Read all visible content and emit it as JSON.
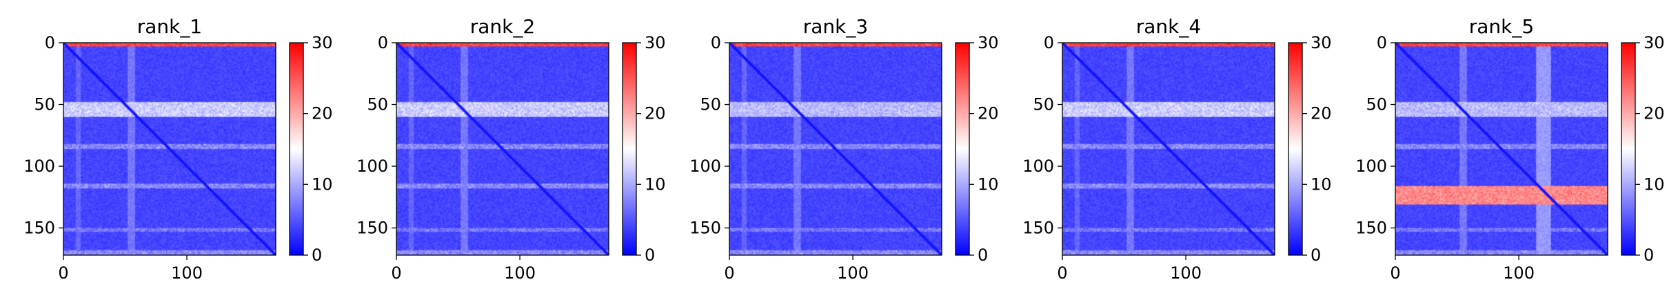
{
  "chart_data": [
    {
      "type": "heatmap",
      "title": "rank_1",
      "xlim": [
        0,
        172
      ],
      "ylim": [
        172,
        0
      ],
      "xticks": [
        0,
        100
      ],
      "xtick_labels": [
        "0",
        "100"
      ],
      "yticks": [
        0,
        50,
        100,
        150
      ],
      "ytick_labels": [
        "0",
        "50",
        "100",
        "150"
      ],
      "colorbar": {
        "range": [
          0,
          30
        ],
        "ticks": [
          0,
          10,
          20,
          30
        ],
        "tick_labels": [
          "0",
          "10",
          "20",
          "30"
        ],
        "colormap": "bwr"
      },
      "base_value": 4,
      "diagonal_value": 1,
      "row_bands": [
        {
          "rows": [
            0,
            3
          ],
          "value": 26
        },
        {
          "rows": [
            48,
            60
          ],
          "value": 12
        },
        {
          "rows": [
            82,
            86
          ],
          "value": 8
        },
        {
          "rows": [
            114,
            118
          ],
          "value": 8
        },
        {
          "rows": [
            150,
            153
          ],
          "value": 7
        },
        {
          "rows": [
            168,
            172
          ],
          "value": 8
        }
      ],
      "col_bands": [
        {
          "cols": [
            52,
            58
          ],
          "value": 7
        },
        {
          "cols": [
            10,
            14
          ],
          "value": 6
        }
      ]
    },
    {
      "type": "heatmap",
      "title": "rank_2",
      "xlim": [
        0,
        172
      ],
      "ylim": [
        172,
        0
      ],
      "xticks": [
        0,
        100
      ],
      "xtick_labels": [
        "0",
        "100"
      ],
      "yticks": [
        0,
        50,
        100,
        150
      ],
      "ytick_labels": [
        "0",
        "50",
        "100",
        "150"
      ],
      "colorbar": {
        "range": [
          0,
          30
        ],
        "ticks": [
          0,
          10,
          20,
          30
        ],
        "tick_labels": [
          "0",
          "10",
          "20",
          "30"
        ],
        "colormap": "bwr"
      },
      "base_value": 4,
      "diagonal_value": 1,
      "row_bands": [
        {
          "rows": [
            0,
            3
          ],
          "value": 26
        },
        {
          "rows": [
            48,
            60
          ],
          "value": 12
        },
        {
          "rows": [
            82,
            86
          ],
          "value": 8
        },
        {
          "rows": [
            114,
            118
          ],
          "value": 8
        },
        {
          "rows": [
            150,
            153
          ],
          "value": 7
        },
        {
          "rows": [
            168,
            172
          ],
          "value": 8
        }
      ],
      "col_bands": [
        {
          "cols": [
            52,
            58
          ],
          "value": 7
        },
        {
          "cols": [
            10,
            14
          ],
          "value": 6
        }
      ]
    },
    {
      "type": "heatmap",
      "title": "rank_3",
      "xlim": [
        0,
        172
      ],
      "ylim": [
        172,
        0
      ],
      "xticks": [
        0,
        100
      ],
      "xtick_labels": [
        "0",
        "100"
      ],
      "yticks": [
        0,
        50,
        100,
        150
      ],
      "ytick_labels": [
        "0",
        "50",
        "100",
        "150"
      ],
      "colorbar": {
        "range": [
          0,
          30
        ],
        "ticks": [
          0,
          10,
          20,
          30
        ],
        "tick_labels": [
          "0",
          "10",
          "20",
          "30"
        ],
        "colormap": "bwr"
      },
      "base_value": 4,
      "diagonal_value": 1,
      "row_bands": [
        {
          "rows": [
            0,
            3
          ],
          "value": 26
        },
        {
          "rows": [
            48,
            60
          ],
          "value": 11
        },
        {
          "rows": [
            82,
            86
          ],
          "value": 8
        },
        {
          "rows": [
            114,
            118
          ],
          "value": 8
        },
        {
          "rows": [
            150,
            153
          ],
          "value": 7
        },
        {
          "rows": [
            168,
            172
          ],
          "value": 8
        }
      ],
      "col_bands": [
        {
          "cols": [
            52,
            58
          ],
          "value": 7
        },
        {
          "cols": [
            10,
            14
          ],
          "value": 6
        }
      ]
    },
    {
      "type": "heatmap",
      "title": "rank_4",
      "xlim": [
        0,
        172
      ],
      "ylim": [
        172,
        0
      ],
      "xticks": [
        0,
        100
      ],
      "xtick_labels": [
        "0",
        "100"
      ],
      "yticks": [
        0,
        50,
        100,
        150
      ],
      "ytick_labels": [
        "0",
        "50",
        "100",
        "150"
      ],
      "colorbar": {
        "range": [
          0,
          30
        ],
        "ticks": [
          0,
          10,
          20,
          30
        ],
        "tick_labels": [
          "0",
          "10",
          "20",
          "30"
        ],
        "colormap": "bwr"
      },
      "base_value": 4,
      "diagonal_value": 1,
      "row_bands": [
        {
          "rows": [
            0,
            3
          ],
          "value": 26
        },
        {
          "rows": [
            48,
            60
          ],
          "value": 12
        },
        {
          "rows": [
            82,
            86
          ],
          "value": 8
        },
        {
          "rows": [
            114,
            118
          ],
          "value": 8
        },
        {
          "rows": [
            150,
            153
          ],
          "value": 7
        },
        {
          "rows": [
            168,
            172
          ],
          "value": 8
        }
      ],
      "col_bands": [
        {
          "cols": [
            52,
            58
          ],
          "value": 7
        },
        {
          "cols": [
            10,
            14
          ],
          "value": 6
        }
      ]
    },
    {
      "type": "heatmap",
      "title": "rank_5",
      "xlim": [
        0,
        172
      ],
      "ylim": [
        172,
        0
      ],
      "xticks": [
        0,
        100
      ],
      "xtick_labels": [
        "0",
        "100"
      ],
      "yticks": [
        0,
        50,
        100,
        150
      ],
      "ytick_labels": [
        "0",
        "50",
        "100",
        "150"
      ],
      "colorbar": {
        "range": [
          0,
          30
        ],
        "ticks": [
          0,
          10,
          20,
          30
        ],
        "tick_labels": [
          "0",
          "10",
          "20",
          "30"
        ],
        "colormap": "bwr"
      },
      "base_value": 4,
      "diagonal_value": 1,
      "row_bands": [
        {
          "rows": [
            0,
            3
          ],
          "value": 26
        },
        {
          "rows": [
            48,
            60
          ],
          "value": 11
        },
        {
          "rows": [
            82,
            86
          ],
          "value": 8
        },
        {
          "rows": [
            116,
            131
          ],
          "value": 22
        },
        {
          "rows": [
            150,
            153
          ],
          "value": 7
        },
        {
          "rows": [
            168,
            172
          ],
          "value": 8
        }
      ],
      "col_bands": [
        {
          "cols": [
            52,
            58
          ],
          "value": 7
        },
        {
          "cols": [
            114,
            126
          ],
          "value": 9
        }
      ]
    }
  ]
}
